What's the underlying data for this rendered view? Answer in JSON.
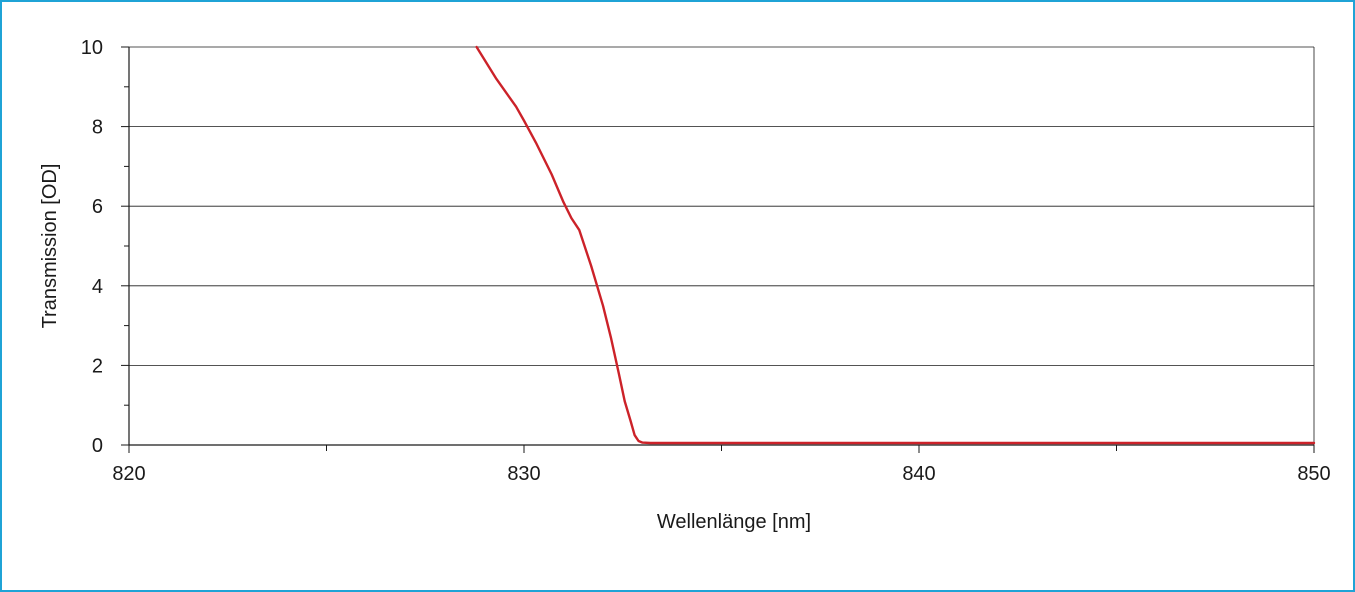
{
  "chart_data": {
    "type": "line",
    "title": "",
    "xlabel": "Wellenlänge [nm]",
    "ylabel": "Transmission [OD]",
    "xlim": [
      820,
      850
    ],
    "ylim": [
      0,
      10
    ],
    "x_ticks": [
      820,
      830,
      840,
      850
    ],
    "x_minor_ticks": [
      825,
      835,
      845
    ],
    "y_ticks": [
      0,
      2,
      4,
      6,
      8,
      10
    ],
    "y_minor_ticks": [
      1,
      3,
      5,
      7,
      9
    ],
    "grid": "horizontal major lines",
    "legend": "none",
    "series": [
      {
        "color": "#cc2229",
        "x": [
          828.8,
          829.3,
          829.8,
          830.0,
          830.3,
          830.7,
          831.0,
          831.2,
          831.4,
          831.7,
          832.0,
          832.2,
          832.4,
          832.55,
          832.7,
          832.8,
          832.9,
          833.0,
          833.2,
          834.0,
          840.0,
          850.0
        ],
        "y": [
          10.0,
          9.2,
          8.5,
          8.15,
          7.6,
          6.8,
          6.1,
          5.7,
          5.4,
          4.5,
          3.5,
          2.7,
          1.8,
          1.1,
          0.6,
          0.25,
          0.1,
          0.06,
          0.05,
          0.05,
          0.05,
          0.05
        ]
      }
    ]
  }
}
